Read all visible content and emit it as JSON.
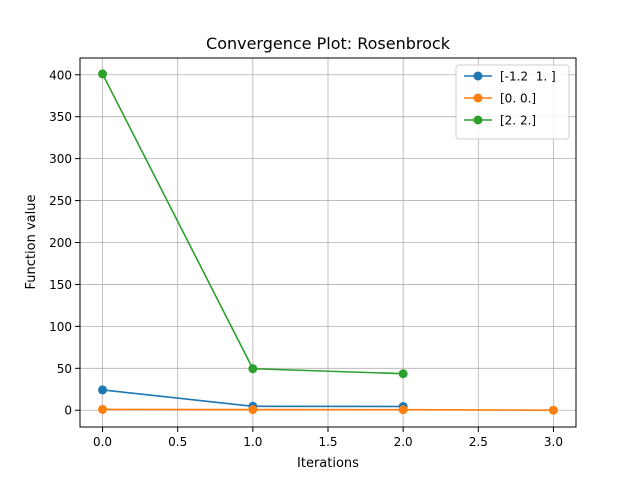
{
  "chart_data": {
    "type": "line",
    "title": "Convergence Plot: Rosenbrock",
    "xlabel": "Iterations",
    "ylabel": "Function value",
    "xlim": [
      -0.15,
      3.15
    ],
    "ylim": [
      -20,
      420
    ],
    "xticks": [
      0.0,
      0.5,
      1.0,
      1.5,
      2.0,
      2.5,
      3.0
    ],
    "xtick_labels": [
      "0.0",
      "0.5",
      "1.0",
      "1.5",
      "2.0",
      "2.5",
      "3.0"
    ],
    "yticks": [
      0,
      50,
      100,
      150,
      200,
      250,
      300,
      350,
      400
    ],
    "ytick_labels": [
      "0",
      "50",
      "100",
      "150",
      "200",
      "250",
      "300",
      "350",
      "400"
    ],
    "grid": true,
    "legend_position": "top-right",
    "series": [
      {
        "name": "[-1.2  1. ]",
        "color": "#1f77b4",
        "x": [
          0,
          1,
          2
        ],
        "y": [
          24.2,
          4.7,
          4.5
        ]
      },
      {
        "name": "[0. 0.]",
        "color": "#ff7f0e",
        "x": [
          0,
          1,
          2,
          3
        ],
        "y": [
          1.0,
          0.8,
          0.6,
          0.0
        ]
      },
      {
        "name": "[2. 2.]",
        "color": "#2ca02c",
        "x": [
          0,
          1,
          2
        ],
        "y": [
          401.0,
          49.5,
          43.5
        ]
      }
    ]
  }
}
